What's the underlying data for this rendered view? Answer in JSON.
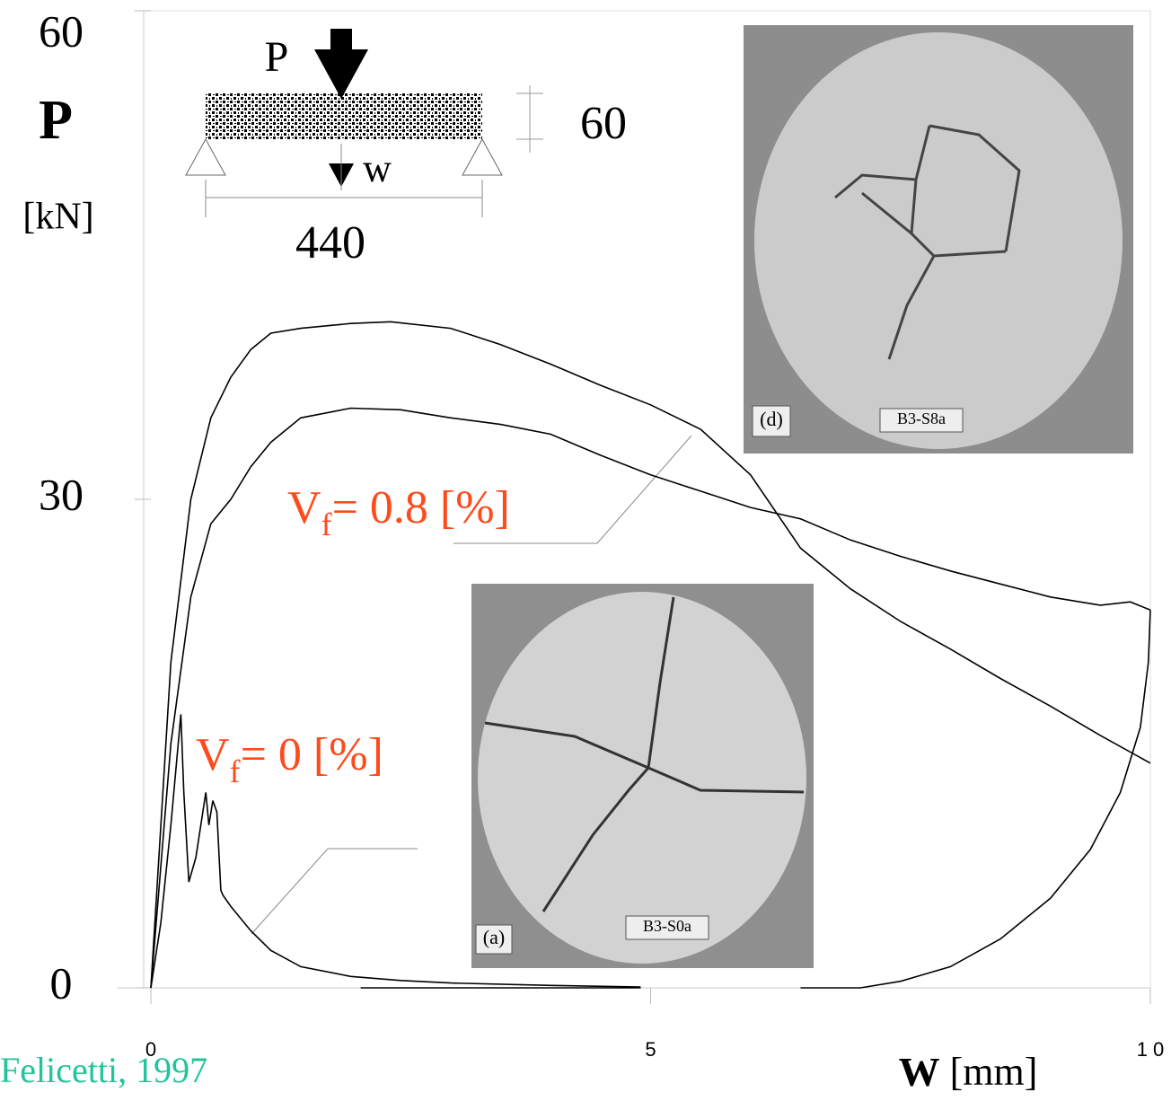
{
  "chart_data": {
    "type": "line",
    "y_label_symbol": "P",
    "y_label_unit": "[kN]",
    "x_label_symbol": "W",
    "x_label_unit": "[mm]",
    "xlim": [
      0,
      10
    ],
    "ylim": [
      0,
      60
    ],
    "xticks": [
      0,
      5,
      {
        "value": 10,
        "label": "1 0"
      }
    ],
    "yticks": [
      0,
      30,
      60
    ],
    "series": [
      {
        "color": "#000000",
        "x": [
          0,
          0.2,
          0.4,
          0.6,
          0.8,
          1.0,
          1.2,
          1.5,
          2.0,
          2.4,
          3.0,
          3.5,
          4.0,
          4.5,
          5.0,
          5.5,
          6.0,
          6.5,
          7.0,
          7.5,
          8.0,
          8.5,
          9.0,
          9.5,
          10.0
        ],
        "values": [
          0,
          20,
          30,
          35,
          37.5,
          39.2,
          40.2,
          40.5,
          40.8,
          40.9,
          40.5,
          39.5,
          38.3,
          37,
          35.8,
          34.3,
          31.5,
          27,
          24.5,
          22.5,
          20.8,
          19,
          17.3,
          15.5,
          13.8
        ]
      },
      {
        "color": "#000000",
        "x": [
          0,
          0.2,
          0.4,
          0.6,
          0.8,
          1.0,
          1.2,
          1.5,
          2.0,
          2.5,
          3.0,
          3.5,
          4.0,
          4.5,
          5.0,
          5.5,
          6.0,
          6.5,
          7.0,
          7.5,
          8.0,
          8.5,
          9.0,
          9.5,
          9.8,
          10.0
        ],
        "values": [
          0,
          15,
          24,
          28.5,
          30,
          32,
          33.5,
          35,
          35.6,
          35.5,
          35,
          34.6,
          34,
          32.7,
          31.5,
          30.5,
          29.5,
          28.8,
          27.5,
          26.5,
          25.6,
          24.8,
          24,
          23.5,
          23.7,
          23.2
        ]
      },
      {
        "color": "#000000",
        "x": [
          10,
          9.98,
          9.9,
          9.7,
          9.4,
          9.0,
          8.5,
          8.0,
          7.5,
          7.1,
          6.5
        ],
        "values": [
          23.2,
          20,
          16,
          12,
          8.5,
          5.5,
          3,
          1.3,
          0.4,
          0,
          0
        ]
      },
      {
        "color": "#000000",
        "x": [
          0,
          0.1,
          0.2,
          0.3,
          0.33,
          0.38,
          0.45,
          0.55,
          0.58,
          0.62,
          0.66,
          0.7,
          0.72,
          0.8,
          1.0,
          1.2,
          1.5,
          2.0,
          2.5,
          3.0,
          4.0,
          4.9
        ],
        "values": [
          0,
          4,
          10,
          16.8,
          12,
          6.5,
          8,
          12,
          10,
          11.5,
          10.8,
          6,
          5.7,
          5,
          3.5,
          2.3,
          1.3,
          0.7,
          0.45,
          0.3,
          0.15,
          0.05
        ]
      },
      {
        "color": "#000000",
        "x": [
          2.1,
          4.9
        ],
        "values": [
          0,
          0
        ]
      }
    ],
    "annotations": [
      {
        "main": "V",
        "sub": "f",
        "text": "=  0.8 [%]",
        "color": "#ff4a1c"
      },
      {
        "main": "V",
        "sub": "f",
        "text": "=  0 [%]",
        "color": "#ff4a1c"
      }
    ],
    "source": "Felicetti, 1997",
    "source_color": "#22c49a"
  },
  "diagram": {
    "load": "P",
    "deflection": "w",
    "depth": "60",
    "span": "440"
  },
  "photos": [
    {
      "panel": "(d)",
      "specimen": "B3-S8a"
    },
    {
      "panel": "(a)",
      "specimen": "B3-S0a"
    }
  ]
}
